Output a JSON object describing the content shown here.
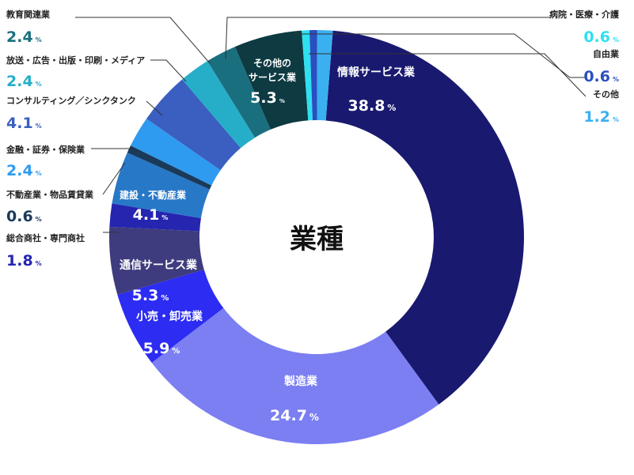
{
  "chart_data": {
    "type": "pie",
    "title": "業種",
    "unit": "%",
    "slices": [
      {
        "label": "情報サービス業",
        "value": 38.8,
        "color": "#191970"
      },
      {
        "label": "製造業",
        "value": 24.7,
        "color": "#7b7ff2"
      },
      {
        "label": "小売・卸売業",
        "value": 5.9,
        "color": "#2c2cf2"
      },
      {
        "label": "通信サービス業",
        "value": 5.3,
        "color": "#3e3c7e"
      },
      {
        "label": "総合商社・専門商社",
        "value": 1.8,
        "color": "#2525b0"
      },
      {
        "label": "建設・不動産業",
        "value": 4.1,
        "color": "#2878c8"
      },
      {
        "label": "不動産業・物品賃貸業",
        "value": 0.6,
        "color": "#1a3a5a"
      },
      {
        "label": "金融・証券・保険業",
        "value": 2.4,
        "color": "#2e9bf0"
      },
      {
        "label": "コンサルティング／シンクタンク",
        "value": 4.1,
        "color": "#3a5fc0"
      },
      {
        "label": "放送・広告・出版・印刷・メディア",
        "value": 2.4,
        "color": "#26aec8"
      },
      {
        "label": "教育関連業",
        "value": 2.4,
        "color": "#1a6f7f"
      },
      {
        "label": "その他サービス業",
        "value": 5.3,
        "color": "#0e3a42"
      },
      {
        "label": "病院・医療・介護",
        "value": 0.6,
        "color": "#2ee0f0"
      },
      {
        "label": "自由業",
        "value": 0.6,
        "color": "#2a4fc0"
      },
      {
        "label": "その他",
        "value": 1.2,
        "color": "#3ab0f0"
      }
    ]
  }
}
